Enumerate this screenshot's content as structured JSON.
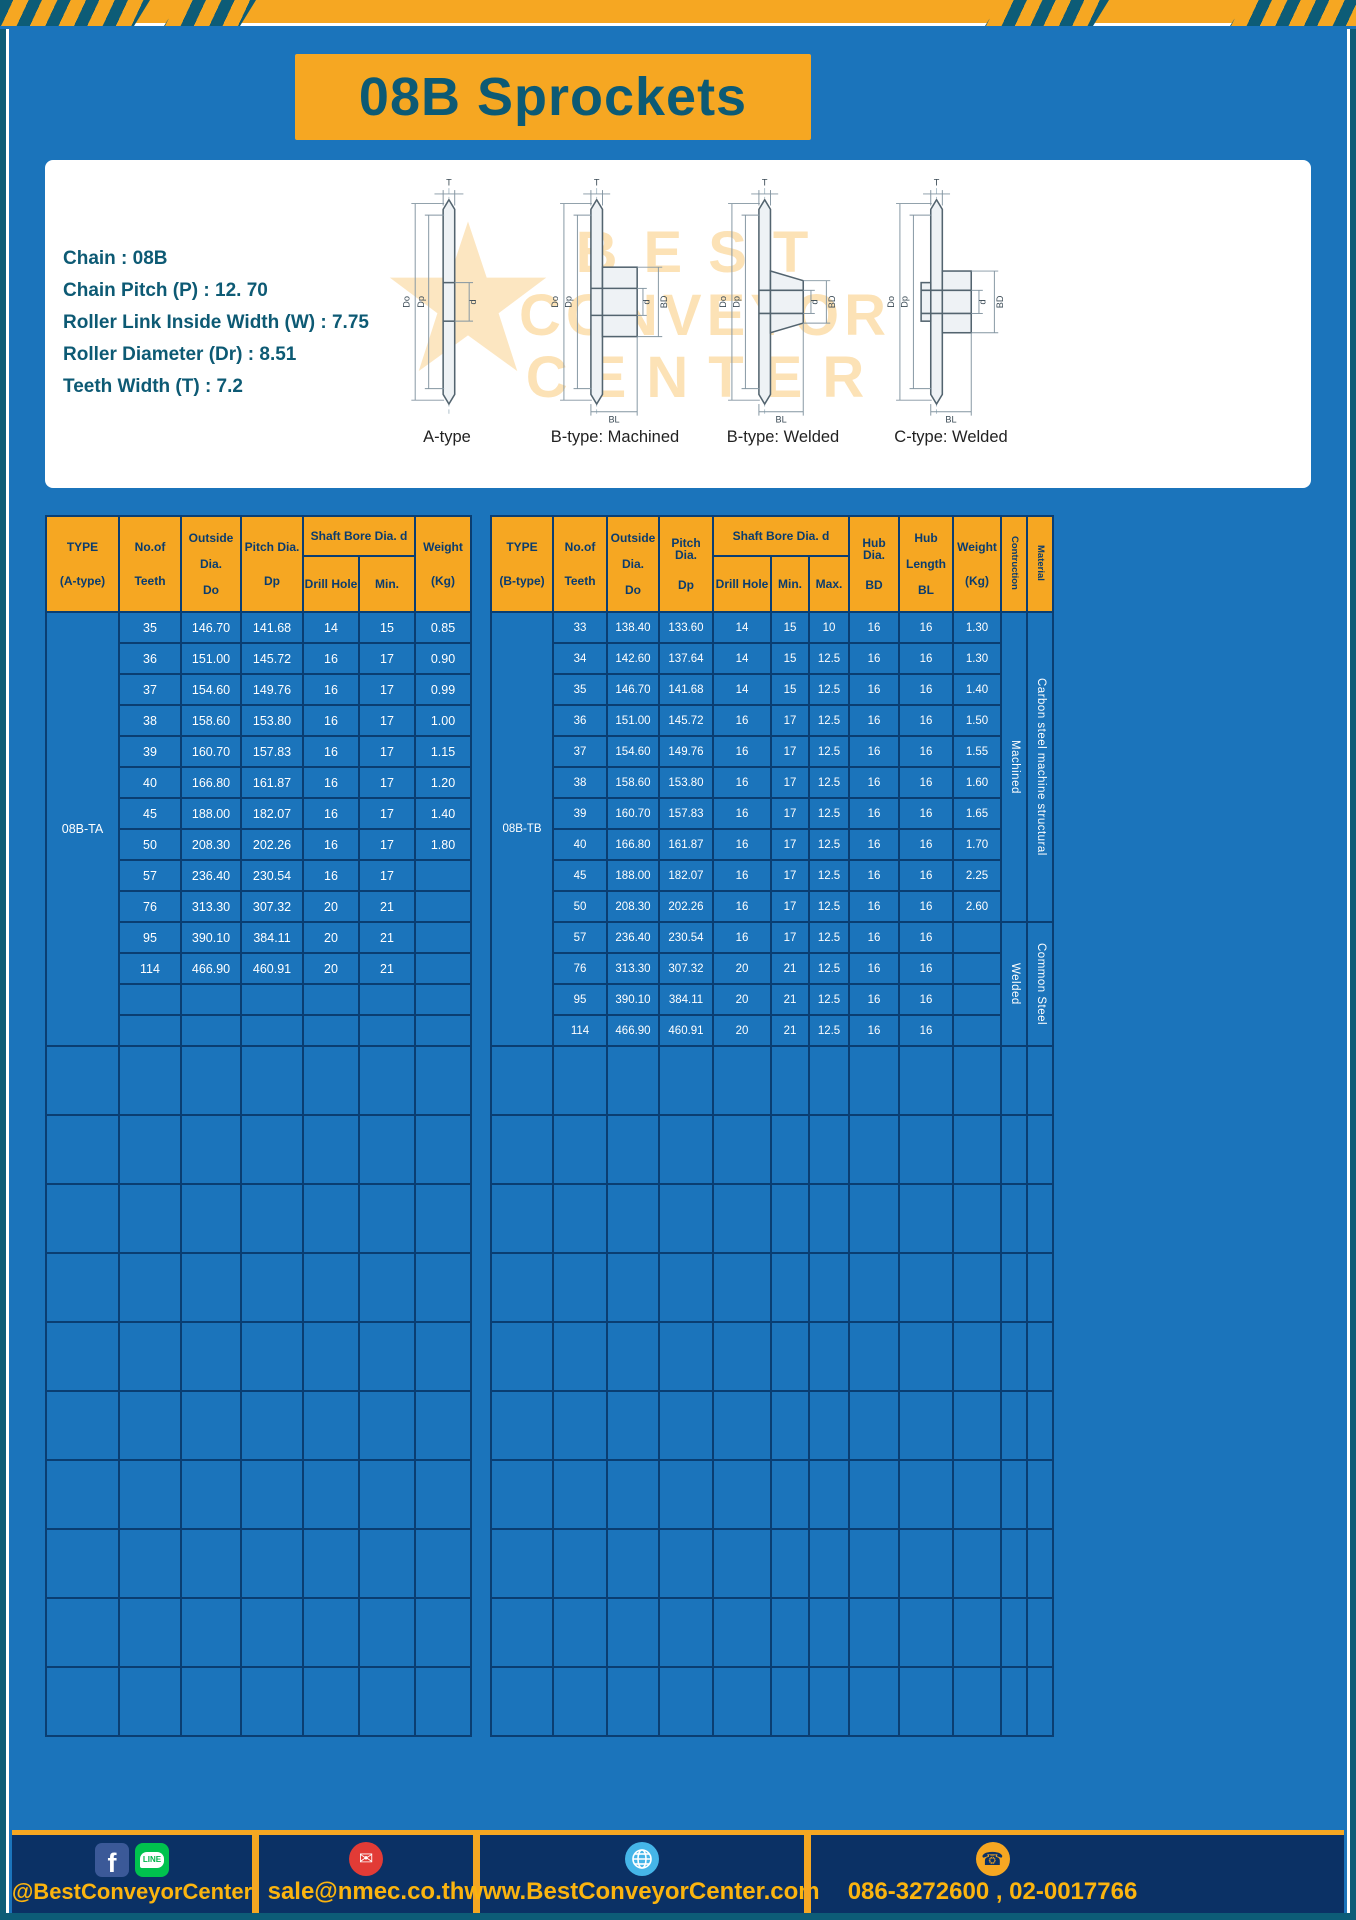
{
  "title": "08B Sprockets",
  "specs": {
    "chain": "Chain : 08B",
    "pitch": "Chain Pitch (P) : 12. 70",
    "roller_width": "Roller Link Inside Width (W) : 7.75",
    "roller_dia": "Roller Diameter (Dr) : 8.51",
    "teeth_width": "Teeth Width (T) : 7.2"
  },
  "watermark": {
    "line1": "BEST",
    "line2": "CONVEYOR",
    "line3": "CENTER"
  },
  "drawings": {
    "labels": [
      "A-type",
      "B-type: Machined",
      "B-type: Welded",
      "C-type: Welded"
    ],
    "dims": {
      "t": "T",
      "do": "Do",
      "dp": "Dp",
      "d": "d",
      "bd": "BD",
      "bl": "BL"
    }
  },
  "table_a": {
    "type_value": "08B-TA",
    "headers": {
      "type1": "TYPE",
      "type2": "(A-type)",
      "teeth1": "No.of",
      "teeth2": "Teeth",
      "out1": "Outside",
      "out2": "Dia.",
      "out3": "Do",
      "pitch1": "Pitch Dia.",
      "pitch2": "Dp",
      "shaft": "Shaft Bore Dia. d",
      "drill": "Drill Hole",
      "min": "Min.",
      "weight1": "Weight",
      "weight2": "(Kg)"
    },
    "rows": [
      {
        "teeth": "35",
        "outside": "146.70",
        "pitch": "141.68",
        "drill": "14",
        "min": "15",
        "weight": "0.85"
      },
      {
        "teeth": "36",
        "outside": "151.00",
        "pitch": "145.72",
        "drill": "16",
        "min": "17",
        "weight": "0.90"
      },
      {
        "teeth": "37",
        "outside": "154.60",
        "pitch": "149.76",
        "drill": "16",
        "min": "17",
        "weight": "0.99"
      },
      {
        "teeth": "38",
        "outside": "158.60",
        "pitch": "153.80",
        "drill": "16",
        "min": "17",
        "weight": "1.00"
      },
      {
        "teeth": "39",
        "outside": "160.70",
        "pitch": "157.83",
        "drill": "16",
        "min": "17",
        "weight": "1.15"
      },
      {
        "teeth": "40",
        "outside": "166.80",
        "pitch": "161.87",
        "drill": "16",
        "min": "17",
        "weight": "1.20"
      },
      {
        "teeth": "45",
        "outside": "188.00",
        "pitch": "182.07",
        "drill": "16",
        "min": "17",
        "weight": "1.40"
      },
      {
        "teeth": "50",
        "outside": "208.30",
        "pitch": "202.26",
        "drill": "16",
        "min": "17",
        "weight": "1.80"
      },
      {
        "teeth": "57",
        "outside": "236.40",
        "pitch": "230.54",
        "drill": "16",
        "min": "17",
        "weight": ""
      },
      {
        "teeth": "76",
        "outside": "313.30",
        "pitch": "307.32",
        "drill": "20",
        "min": "21",
        "weight": ""
      },
      {
        "teeth": "95",
        "outside": "390.10",
        "pitch": "384.11",
        "drill": "20",
        "min": "21",
        "weight": ""
      },
      {
        "teeth": "114",
        "outside": "466.90",
        "pitch": "460.91",
        "drill": "20",
        "min": "21",
        "weight": ""
      }
    ],
    "blank_data_rows": 2,
    "empty_rows": 10
  },
  "table_b": {
    "type_value": "08B-TB",
    "headers": {
      "type1": "TYPE",
      "type2": "(B-type)",
      "teeth1": "No.of",
      "teeth2": "Teeth",
      "out1": "Outside",
      "out2": "Dia.",
      "out3": "Do",
      "pitch1": "Pitch Dia.",
      "pitch2": "Dp",
      "shaft": "Shaft Bore Dia. d",
      "drill": "Drill Hole",
      "min": "Min.",
      "max": "Max.",
      "hubdia1": "Hub Dia.",
      "hubdia2": "BD",
      "hublen1": "Hub",
      "hublen2": "Length",
      "hublen3": "BL",
      "weight1": "Weight",
      "weight2": "(Kg)",
      "construction": "Contruction",
      "material": "Material"
    },
    "rows": [
      {
        "teeth": "33",
        "outside": "138.40",
        "pitch": "133.60",
        "drill": "14",
        "min": "15",
        "max": "10",
        "hub_dia": "16",
        "hub_len": "16",
        "weight": "1.30"
      },
      {
        "teeth": "34",
        "outside": "142.60",
        "pitch": "137.64",
        "drill": "14",
        "min": "15",
        "max": "12.5",
        "hub_dia": "16",
        "hub_len": "16",
        "weight": "1.30"
      },
      {
        "teeth": "35",
        "outside": "146.70",
        "pitch": "141.68",
        "drill": "14",
        "min": "15",
        "max": "12.5",
        "hub_dia": "16",
        "hub_len": "16",
        "weight": "1.40"
      },
      {
        "teeth": "36",
        "outside": "151.00",
        "pitch": "145.72",
        "drill": "16",
        "min": "17",
        "max": "12.5",
        "hub_dia": "16",
        "hub_len": "16",
        "weight": "1.50"
      },
      {
        "teeth": "37",
        "outside": "154.60",
        "pitch": "149.76",
        "drill": "16",
        "min": "17",
        "max": "12.5",
        "hub_dia": "16",
        "hub_len": "16",
        "weight": "1.55"
      },
      {
        "teeth": "38",
        "outside": "158.60",
        "pitch": "153.80",
        "drill": "16",
        "min": "17",
        "max": "12.5",
        "hub_dia": "16",
        "hub_len": "16",
        "weight": "1.60"
      },
      {
        "teeth": "39",
        "outside": "160.70",
        "pitch": "157.83",
        "drill": "16",
        "min": "17",
        "max": "12.5",
        "hub_dia": "16",
        "hub_len": "16",
        "weight": "1.65"
      },
      {
        "teeth": "40",
        "outside": "166.80",
        "pitch": "161.87",
        "drill": "16",
        "min": "17",
        "max": "12.5",
        "hub_dia": "16",
        "hub_len": "16",
        "weight": "1.70"
      },
      {
        "teeth": "45",
        "outside": "188.00",
        "pitch": "182.07",
        "drill": "16",
        "min": "17",
        "max": "12.5",
        "hub_dia": "16",
        "hub_len": "16",
        "weight": "2.25"
      },
      {
        "teeth": "50",
        "outside": "208.30",
        "pitch": "202.26",
        "drill": "16",
        "min": "17",
        "max": "12.5",
        "hub_dia": "16",
        "hub_len": "16",
        "weight": "2.60"
      },
      {
        "teeth": "57",
        "outside": "236.40",
        "pitch": "230.54",
        "drill": "16",
        "min": "17",
        "max": "12.5",
        "hub_dia": "16",
        "hub_len": "16",
        "weight": ""
      },
      {
        "teeth": "76",
        "outside": "313.30",
        "pitch": "307.32",
        "drill": "20",
        "min": "21",
        "max": "12.5",
        "hub_dia": "16",
        "hub_len": "16",
        "weight": ""
      },
      {
        "teeth": "95",
        "outside": "390.10",
        "pitch": "384.11",
        "drill": "20",
        "min": "21",
        "max": "12.5",
        "hub_dia": "16",
        "hub_len": "16",
        "weight": ""
      },
      {
        "teeth": "114",
        "outside": "466.90",
        "pitch": "460.91",
        "drill": "20",
        "min": "21",
        "max": "12.5",
        "hub_dia": "16",
        "hub_len": "16",
        "weight": ""
      }
    ],
    "construction_groups": [
      {
        "label": "Machined",
        "span": 10
      },
      {
        "label": "Welded",
        "span": 4
      }
    ],
    "material_groups": [
      {
        "label": "Carbon steel  machine structural",
        "span": 10
      },
      {
        "label": "Common  Steel",
        "span": 4
      }
    ],
    "empty_rows": 10
  },
  "footer": {
    "social_handle": "@BestConveyorCenter",
    "facebook_glyph": "f",
    "line_label": "LINE",
    "email": "sale@nmec.co.th",
    "website": "www.BestConveyorCenter.com",
    "phones": "086-3272600 , 02-0017766",
    "icons": {
      "email_glyph": "✉",
      "phone_glyph": "☎"
    }
  },
  "colors": {
    "page_blue": "#1b74bb",
    "grid_navy": "#0a3e72",
    "accent_yellow": "#f6a722",
    "teal": "#0d5c77",
    "footer_navy": "#0b3165",
    "footer_text": "#fbb40f"
  }
}
